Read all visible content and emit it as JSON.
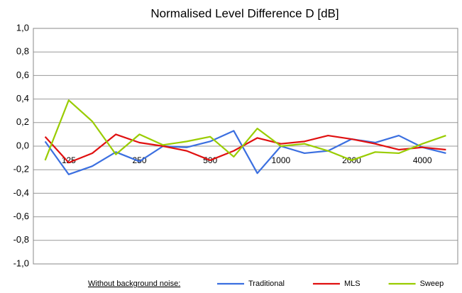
{
  "chart_data": {
    "type": "line",
    "title": "Normalised Level Difference D [dB]",
    "categories": [
      null,
      "125",
      null,
      null,
      "250",
      null,
      null,
      "500",
      null,
      null,
      "1000",
      null,
      null,
      "2000",
      null,
      null,
      "4000",
      null
    ],
    "series": [
      {
        "name": "Traditional",
        "color": "#3b6fe0",
        "values": [
          0.04,
          -0.24,
          -0.17,
          -0.05,
          -0.13,
          0.0,
          -0.01,
          0.04,
          0.13,
          -0.23,
          0.0,
          -0.06,
          -0.04,
          0.06,
          0.03,
          0.09,
          -0.01,
          -0.06
        ]
      },
      {
        "name": "MLS",
        "color": "#e01010",
        "values": [
          0.08,
          -0.14,
          -0.06,
          0.1,
          0.03,
          0.0,
          -0.04,
          -0.12,
          -0.04,
          0.07,
          0.02,
          0.04,
          0.09,
          0.06,
          0.02,
          -0.03,
          -0.01,
          -0.03
        ]
      },
      {
        "name": "Sweep",
        "color": "#99cc00",
        "values": [
          -0.12,
          0.39,
          0.21,
          -0.07,
          0.1,
          0.01,
          0.04,
          0.08,
          -0.09,
          0.15,
          0.0,
          0.02,
          -0.04,
          -0.12,
          -0.05,
          -0.06,
          0.02,
          0.09
        ]
      }
    ],
    "legend_title": "Without background noise:",
    "ylim": [
      -1.0,
      1.0
    ],
    "yticks": [
      {
        "value": -1.0,
        "label": "-1,0"
      },
      {
        "value": -0.8,
        "label": "-0,8"
      },
      {
        "value": -0.6,
        "label": "-0,6"
      },
      {
        "value": -0.4,
        "label": "-0,4"
      },
      {
        "value": -0.2,
        "label": "-0,2"
      },
      {
        "value": 0.0,
        "label": "0,0"
      },
      {
        "value": 0.2,
        "label": "0,2"
      },
      {
        "value": 0.4,
        "label": "0,4"
      },
      {
        "value": 0.6,
        "label": "0,6"
      },
      {
        "value": 0.8,
        "label": "0,8"
      },
      {
        "value": 1.0,
        "label": "1,0"
      }
    ],
    "grid": true,
    "legend": "bottom"
  }
}
